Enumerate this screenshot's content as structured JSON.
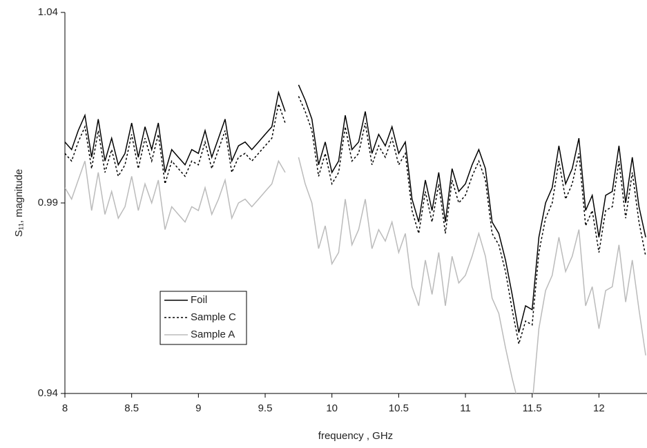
{
  "chart_data": {
    "type": "line",
    "xlabel": "frequency , GHz",
    "ylabel": "S₁₁, magnitude",
    "xlim": [
      8,
      12.36
    ],
    "xticks": [
      8,
      8.5,
      9,
      9.5,
      10,
      10.5,
      11,
      11.5,
      12
    ],
    "ylim": [
      0.94,
      1.04
    ],
    "yticks": [
      0.94,
      0.99,
      1.04
    ],
    "grid": false,
    "legend": "lower left",
    "x": [
      8,
      8.05,
      8.1,
      8.15,
      8.2,
      8.25,
      8.3,
      8.35,
      8.4,
      8.45,
      8.5,
      8.55,
      8.6,
      8.65,
      8.7,
      8.75,
      8.8,
      8.85,
      8.9,
      8.95,
      9,
      9.05,
      9.1,
      9.15,
      9.2,
      9.25,
      9.3,
      9.35,
      9.4,
      9.45,
      9.5,
      9.55,
      9.6,
      9.65,
      9.7,
      9.75,
      9.8,
      9.85,
      9.9,
      9.95,
      10,
      10.05,
      10.1,
      10.15,
      10.2,
      10.25,
      10.3,
      10.35,
      10.4,
      10.45,
      10.5,
      10.55,
      10.6,
      10.65,
      10.7,
      10.75,
      10.8,
      10.85,
      10.9,
      10.95,
      11,
      11.05,
      11.1,
      11.15,
      11.2,
      11.25,
      11.3,
      11.35,
      11.4,
      11.45,
      11.5,
      11.55,
      11.6,
      11.65,
      11.7,
      11.75,
      11.8,
      11.85,
      11.9,
      11.95,
      12,
      12.05,
      12.1,
      12.15,
      12.2,
      12.25,
      12.3,
      12.35
    ],
    "series": [
      {
        "name": "Foil",
        "color": "#000000",
        "linestyle": "solid",
        "values": [
          1.006,
          1.004,
          1.009,
          1.013,
          1.002,
          1.012,
          1.001,
          1.007,
          1.0,
          1.003,
          1.011,
          1.002,
          1.01,
          1.004,
          1.011,
          0.998,
          1.004,
          1.002,
          1.0,
          1.004,
          1.003,
          1.009,
          1.002,
          1.007,
          1.012,
          1.001,
          1.005,
          1.006,
          1.004,
          1.006,
          1.008,
          1.01,
          1.019,
          1.014,
          null,
          1.021,
          1.017,
          1.012,
          1.0,
          1.006,
          0.998,
          1.001,
          1.013,
          1.004,
          1.006,
          1.014,
          1.003,
          1.008,
          1.005,
          1.01,
          1.003,
          1.006,
          0.991,
          0.985,
          0.996,
          0.988,
          0.998,
          0.985,
          0.999,
          0.993,
          0.995,
          1.0,
          1.004,
          0.999,
          0.985,
          0.982,
          0.975,
          0.966,
          0.956,
          0.963,
          0.962,
          0.981,
          0.99,
          0.994,
          1.005,
          0.995,
          0.999,
          1.007,
          0.988,
          0.992,
          0.981,
          0.992,
          0.993,
          1.005,
          0.99,
          1.002,
          0.989,
          0.981
        ]
      },
      {
        "name": "Sample C",
        "color": "#000000",
        "linestyle": "dotted",
        "values": [
          1.003,
          1.001,
          1.006,
          1.01,
          0.999,
          1.009,
          0.998,
          1.004,
          0.997,
          1.0,
          1.008,
          0.999,
          1.007,
          1.001,
          1.008,
          0.995,
          1.001,
          0.999,
          0.997,
          1.001,
          1.0,
          1.006,
          0.999,
          1.004,
          1.009,
          0.998,
          1.002,
          1.003,
          1.001,
          1.003,
          1.005,
          1.007,
          1.016,
          1.011,
          null,
          1.018,
          1.014,
          1.009,
          0.997,
          1.003,
          0.995,
          0.998,
          1.01,
          1.001,
          1.003,
          1.011,
          1.0,
          1.005,
          1.002,
          1.007,
          1.0,
          1.003,
          0.988,
          0.982,
          0.993,
          0.985,
          0.995,
          0.982,
          0.996,
          0.99,
          0.992,
          0.997,
          1.001,
          0.996,
          0.982,
          0.979,
          0.972,
          0.962,
          0.953,
          0.959,
          0.958,
          0.977,
          0.986,
          0.99,
          1.001,
          0.991,
          0.995,
          1.003,
          0.984,
          0.988,
          0.977,
          0.988,
          0.989,
          1.001,
          0.986,
          0.998,
          0.985,
          0.976
        ]
      },
      {
        "name": "Sample A",
        "color": "#bbbbbb",
        "linestyle": "solid",
        "values": [
          0.994,
          0.991,
          0.996,
          1.001,
          0.988,
          0.998,
          0.987,
          0.993,
          0.986,
          0.989,
          0.997,
          0.988,
          0.995,
          0.99,
          0.996,
          0.983,
          0.989,
          0.987,
          0.985,
          0.989,
          0.988,
          0.994,
          0.987,
          0.991,
          0.996,
          0.986,
          0.99,
          0.991,
          0.989,
          0.991,
          0.993,
          0.995,
          1.001,
          0.998,
          null,
          1.002,
          0.995,
          0.99,
          0.978,
          0.984,
          0.974,
          0.977,
          0.991,
          0.979,
          0.983,
          0.991,
          0.978,
          0.983,
          0.98,
          0.985,
          0.977,
          0.982,
          0.968,
          0.963,
          0.975,
          0.966,
          0.977,
          0.963,
          0.976,
          0.969,
          0.971,
          0.976,
          0.982,
          0.976,
          0.965,
          0.961,
          0.952,
          0.944,
          0.937,
          0.938,
          0.937,
          0.957,
          0.967,
          0.971,
          0.981,
          0.972,
          0.976,
          0.983,
          0.963,
          0.968,
          0.957,
          0.967,
          0.968,
          0.979,
          0.964,
          0.975,
          0.962,
          0.95
        ]
      }
    ]
  }
}
